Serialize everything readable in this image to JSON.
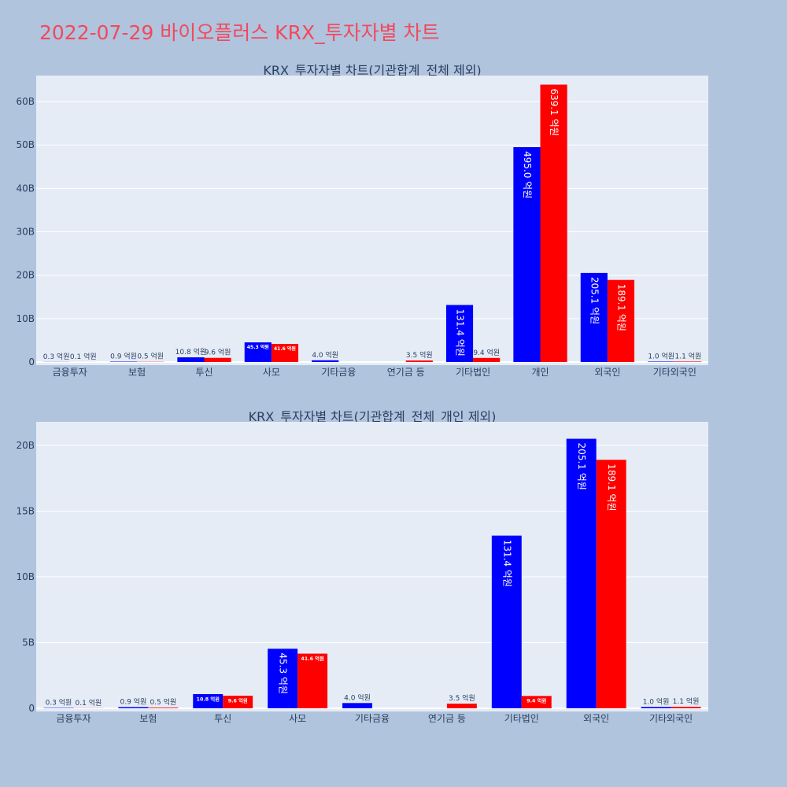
{
  "page_title": "2022-07-29 바이오플러스 KRX_투자자별 차트",
  "colors": {
    "series_1": "#0000ff",
    "series_2": "#ff0000",
    "plot_bg": "#e5ecf6",
    "page_bg": "#b0c4de",
    "title": "#f2495c"
  },
  "chart_data": [
    {
      "type": "bar",
      "title": "KRX_투자자별 차트(기관합계_전체 제외)",
      "xlabel": "",
      "ylabel": "",
      "ylim": [
        0,
        66000000000
      ],
      "yticks": [
        0,
        10000000000,
        20000000000,
        30000000000,
        40000000000,
        50000000000,
        60000000000
      ],
      "ytick_labels": [
        "0",
        "10B",
        "20B",
        "30B",
        "40B",
        "50B",
        "60B"
      ],
      "grid": true,
      "legend": "none",
      "categories": [
        "금융투자",
        "보험",
        "투신",
        "사모",
        "기타금융",
        "연기금 등",
        "기타법인",
        "개인",
        "외국인",
        "기타외국인"
      ],
      "series": [
        {
          "values": [
            30000000,
            90000000,
            1080000000,
            4530000000,
            400000000,
            0,
            13140000000,
            49500000000,
            20510000000,
            100000000
          ],
          "labels": [
            "0.3 억원",
            "0.9 억원",
            "10.8 억원",
            "45.3 억원",
            "4.0 억원",
            "",
            "131.4 억원",
            "495.0 억원",
            "205.1 억원",
            "1.0 억원"
          ]
        },
        {
          "values": [
            10000000,
            50000000,
            960000000,
            4160000000,
            0,
            350000000,
            940000000,
            63910000000,
            18910000000,
            110000000
          ],
          "labels": [
            "0.1 억원",
            "0.5 억원",
            "9.6 억원",
            "41.6 억원",
            "",
            "3.5 억원",
            "9.4 억원",
            "639.1 억원",
            "189.1 억원",
            "1.1 억원"
          ]
        }
      ]
    },
    {
      "type": "bar",
      "title": "KRX_투자자별 차트(기관합계_전체_개인 제외)",
      "xlabel": "",
      "ylabel": "",
      "ylim": [
        0,
        21800000000
      ],
      "yticks": [
        0,
        5000000000,
        10000000000,
        15000000000,
        20000000000
      ],
      "ytick_labels": [
        "0",
        "5B",
        "10B",
        "15B",
        "20B"
      ],
      "grid": true,
      "legend": "none",
      "categories": [
        "금융투자",
        "보험",
        "투신",
        "사모",
        "기타금융",
        "연기금 등",
        "기타법인",
        "외국인",
        "기타외국인"
      ],
      "series": [
        {
          "values": [
            30000000,
            90000000,
            1080000000,
            4530000000,
            400000000,
            0,
            13140000000,
            20510000000,
            100000000
          ],
          "labels": [
            "0.3 억원",
            "0.9 억원",
            "10.8 억원",
            "45.3 억원",
            "4.0 억원",
            "",
            "131.4 억원",
            "205.1 억원",
            "1.0 억원"
          ]
        },
        {
          "values": [
            10000000,
            50000000,
            960000000,
            4160000000,
            0,
            350000000,
            940000000,
            18910000000,
            110000000
          ],
          "labels": [
            "0.1 억원",
            "0.5 억원",
            "9.6 억원",
            "41.6 억원",
            "",
            "3.5 억원",
            "9.4 억원",
            "189.1 억원",
            "1.1 억원"
          ]
        }
      ]
    }
  ]
}
